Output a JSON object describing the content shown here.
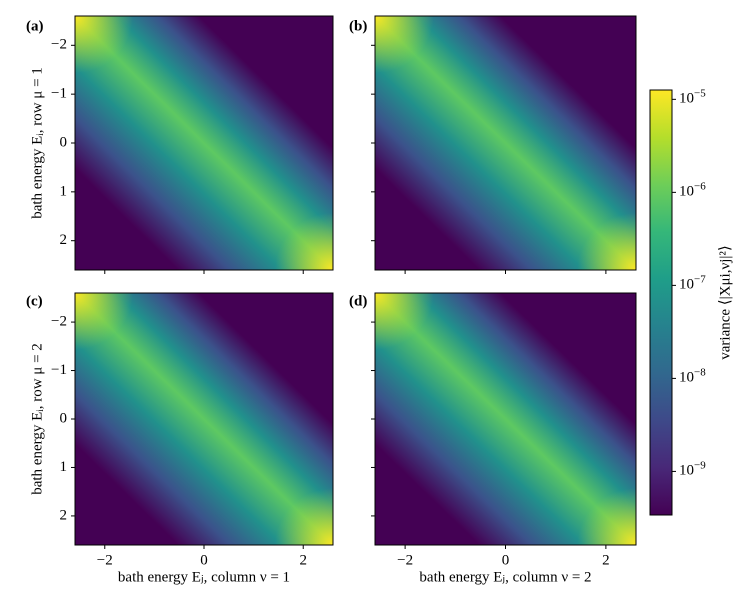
{
  "chart_data": [
    {
      "type": "heatmap",
      "panel_label": "(a)",
      "ylabel": "bath energy Eᵢ, row μ = 1",
      "xlim": [
        -2.6,
        2.6
      ],
      "ylim": [
        2.6,
        -2.6
      ],
      "xticks": [
        -2,
        0,
        2
      ],
      "xticklabels": false,
      "yticks": [
        {
          "value": -2,
          "label": "−2"
        },
        {
          "value": -1,
          "label": "−1"
        },
        0,
        1,
        2
      ],
      "yticklabels": true
    },
    {
      "type": "heatmap",
      "panel_label": "(b)",
      "xlim": [
        -2.6,
        2.6
      ],
      "ylim": [
        2.6,
        -2.6
      ],
      "xticks": [
        -2,
        0,
        2
      ],
      "xticklabels": false,
      "yticks": [
        -2,
        -1,
        0,
        1,
        2
      ],
      "yticklabels": false
    },
    {
      "type": "heatmap",
      "panel_label": "(c)",
      "ylabel": "bath energy Eᵢ, row μ = 2",
      "xlabel": "bath energy Eⱼ, column ν = 1",
      "xlim": [
        -2.6,
        2.6
      ],
      "ylim": [
        2.6,
        -2.6
      ],
      "xticks": [
        {
          "value": -2,
          "label": "−2"
        },
        0,
        2
      ],
      "xticklabels": true,
      "yticks": [
        {
          "value": -2,
          "label": "−2"
        },
        {
          "value": -1,
          "label": "−1"
        },
        0,
        1,
        2
      ],
      "yticklabels": true
    },
    {
      "type": "heatmap",
      "panel_label": "(d)",
      "xlabel": "bath energy Eⱼ, column ν = 2",
      "xlim": [
        -2.6,
        2.6
      ],
      "ylim": [
        2.6,
        -2.6
      ],
      "xticks": [
        {
          "value": -2,
          "label": "−2"
        },
        0,
        2
      ],
      "xticklabels": true,
      "yticks": [
        -2,
        -1,
        0,
        1,
        2
      ],
      "yticklabels": false
    },
    {
      "type": "colorbar",
      "label": "variance ⟨|Xμi,νj|²⟩",
      "log": true,
      "clim": [
        3.4e-10,
        1.26e-05
      ],
      "ticks": [
        {
          "value": 1e-05,
          "label": "10−5"
        },
        {
          "value": 1e-06,
          "label": "10−6"
        },
        {
          "value": 1e-07,
          "label": "10−7"
        },
        {
          "value": 1e-08,
          "label": "10−8"
        },
        {
          "value": 1e-09,
          "label": "10−9"
        }
      ],
      "colormap": [
        "#440154",
        "#482878",
        "#3e4989",
        "#31688e",
        "#26828e",
        "#1f9e89",
        "#35b779",
        "#6ece58",
        "#b5de2b",
        "#fde725"
      ]
    }
  ]
}
